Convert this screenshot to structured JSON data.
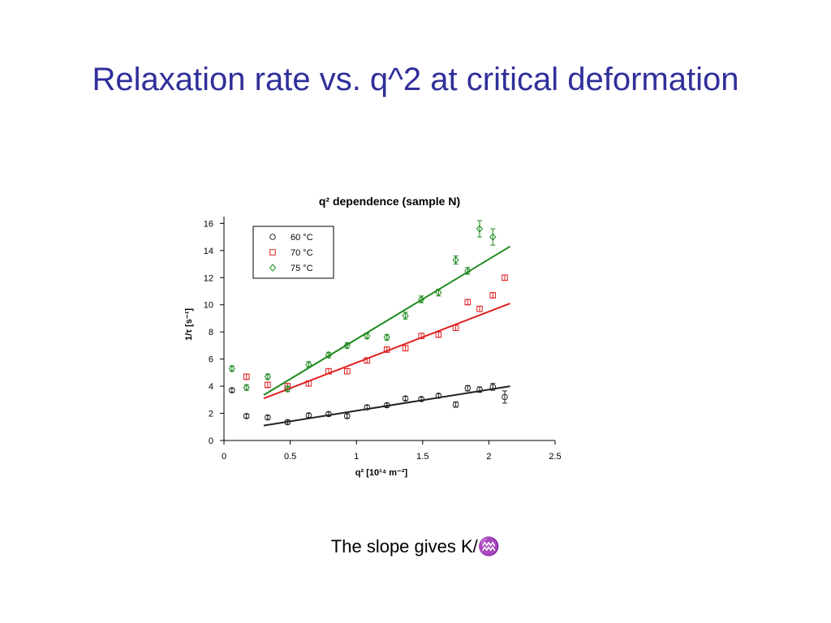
{
  "slide": {
    "title": "Relaxation rate vs. q^2 at critical deformation",
    "caption_text": "The slope gives K/",
    "caption_symbol": "♒"
  },
  "chart_data": {
    "type": "scatter",
    "title": "q² dependence (sample N)",
    "xlabel": "q² [10¹⁴ m⁻²]",
    "ylabel": "1/τ [s⁻¹]",
    "xlim": [
      0,
      2.5
    ],
    "ylim": [
      0,
      16.5
    ],
    "x_ticks": [
      "0",
      "0.5",
      "1",
      "1.5",
      "2",
      "2.5"
    ],
    "y_ticks": [
      "0",
      "2",
      "4",
      "6",
      "8",
      "10",
      "12",
      "14",
      "16"
    ],
    "grid": false,
    "legend_position": "top-left",
    "series": [
      {
        "name": "60 °C",
        "color": "#222222",
        "marker": "circle",
        "points": [
          {
            "x": 0.06,
            "y": 3.7,
            "err": 0.15
          },
          {
            "x": 0.17,
            "y": 1.8,
            "err": 0.15
          },
          {
            "x": 0.33,
            "y": 1.7,
            "err": 0.15
          },
          {
            "x": 0.48,
            "y": 1.35,
            "err": 0.15
          },
          {
            "x": 0.64,
            "y": 1.85,
            "err": 0.15
          },
          {
            "x": 0.79,
            "y": 1.95,
            "err": 0.15
          },
          {
            "x": 0.93,
            "y": 1.8,
            "err": 0.15
          },
          {
            "x": 1.08,
            "y": 2.45,
            "err": 0.15
          },
          {
            "x": 1.23,
            "y": 2.6,
            "err": 0.15
          },
          {
            "x": 1.37,
            "y": 3.1,
            "err": 0.15
          },
          {
            "x": 1.49,
            "y": 3.05,
            "err": 0.15
          },
          {
            "x": 1.62,
            "y": 3.3,
            "err": 0.15
          },
          {
            "x": 1.75,
            "y": 2.65,
            "err": 0.2
          },
          {
            "x": 1.84,
            "y": 3.85,
            "err": 0.2
          },
          {
            "x": 1.93,
            "y": 3.75,
            "err": 0.2
          },
          {
            "x": 2.03,
            "y": 3.95,
            "err": 0.25
          },
          {
            "x": 2.12,
            "y": 3.2,
            "err": 0.45
          }
        ],
        "fit": {
          "x": [
            0.3,
            2.16
          ],
          "y": [
            1.1,
            4.0
          ]
        }
      },
      {
        "name": "70 °C",
        "color": "#e02020",
        "marker": "square",
        "points": [
          {
            "x": 0.17,
            "y": 4.7,
            "err": 0.2
          },
          {
            "x": 0.33,
            "y": 4.1,
            "err": 0.2
          },
          {
            "x": 0.48,
            "y": 4.0,
            "err": 0.2
          },
          {
            "x": 0.64,
            "y": 4.2,
            "err": 0.2
          },
          {
            "x": 0.79,
            "y": 5.1,
            "err": 0.2
          },
          {
            "x": 0.93,
            "y": 5.1,
            "err": 0.2
          },
          {
            "x": 1.08,
            "y": 5.9,
            "err": 0.2
          },
          {
            "x": 1.23,
            "y": 6.7,
            "err": 0.2
          },
          {
            "x": 1.37,
            "y": 6.8,
            "err": 0.2
          },
          {
            "x": 1.49,
            "y": 7.7,
            "err": 0.2
          },
          {
            "x": 1.62,
            "y": 7.8,
            "err": 0.2
          },
          {
            "x": 1.75,
            "y": 8.3,
            "err": 0.2
          },
          {
            "x": 1.84,
            "y": 10.2,
            "err": 0.2
          },
          {
            "x": 1.93,
            "y": 9.7,
            "err": 0.2
          },
          {
            "x": 2.03,
            "y": 10.7,
            "err": 0.2
          },
          {
            "x": 2.12,
            "y": 12.0,
            "err": 0.2
          }
        ],
        "fit": {
          "x": [
            0.3,
            2.16
          ],
          "y": [
            3.1,
            10.1
          ]
        }
      },
      {
        "name": "75 °C",
        "color": "#1e8a1e",
        "marker": "diamond",
        "points": [
          {
            "x": 0.06,
            "y": 5.3,
            "err": 0.2
          },
          {
            "x": 0.17,
            "y": 3.9,
            "err": 0.2
          },
          {
            "x": 0.33,
            "y": 4.7,
            "err": 0.2
          },
          {
            "x": 0.48,
            "y": 3.8,
            "err": 0.2
          },
          {
            "x": 0.64,
            "y": 5.6,
            "err": 0.2
          },
          {
            "x": 0.79,
            "y": 6.3,
            "err": 0.2
          },
          {
            "x": 0.93,
            "y": 7.0,
            "err": 0.2
          },
          {
            "x": 1.08,
            "y": 7.7,
            "err": 0.2
          },
          {
            "x": 1.23,
            "y": 7.6,
            "err": 0.2
          },
          {
            "x": 1.37,
            "y": 9.2,
            "err": 0.25
          },
          {
            "x": 1.49,
            "y": 10.4,
            "err": 0.25
          },
          {
            "x": 1.62,
            "y": 10.9,
            "err": 0.25
          },
          {
            "x": 1.75,
            "y": 13.3,
            "err": 0.3
          },
          {
            "x": 1.84,
            "y": 12.5,
            "err": 0.25
          },
          {
            "x": 1.93,
            "y": 15.6,
            "err": 0.6
          },
          {
            "x": 2.03,
            "y": 15.0,
            "err": 0.6
          }
        ],
        "fit": {
          "x": [
            0.3,
            2.16
          ],
          "y": [
            3.35,
            14.3
          ]
        }
      }
    ]
  }
}
